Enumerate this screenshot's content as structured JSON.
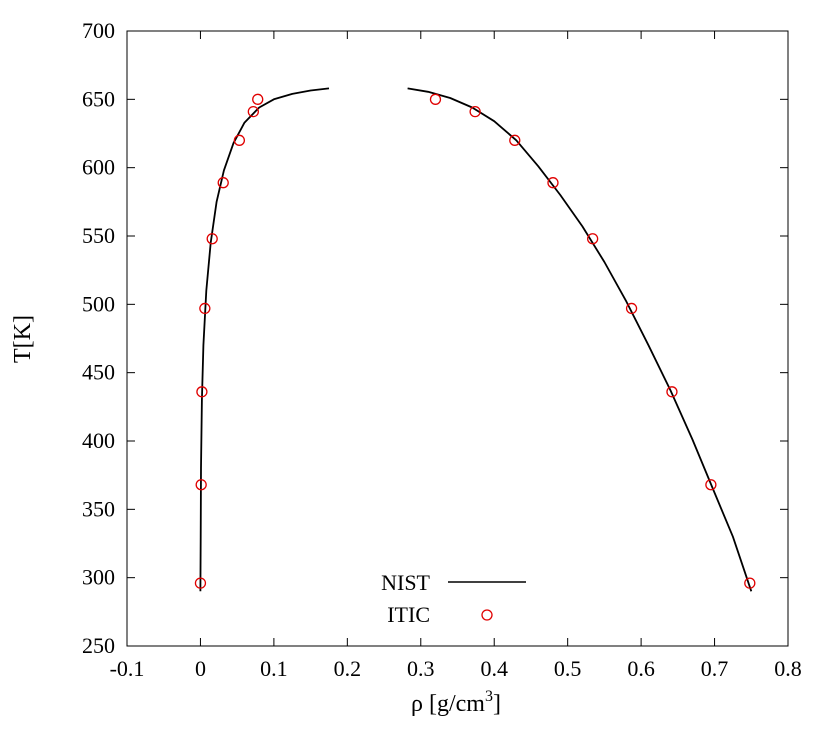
{
  "chart_data": {
    "type": "scatter",
    "xlabel": "ρ [g/cm",
    "xlabel_sup": "3",
    "xlabel_tail": "]",
    "ylabel": "T[K]",
    "xlim": [
      -0.1,
      0.8
    ],
    "ylim": [
      250,
      700
    ],
    "x_ticks": [
      -0.1,
      0,
      0.1,
      0.2,
      0.3,
      0.4,
      0.5,
      0.6,
      0.7,
      0.8
    ],
    "x_tick_labels": [
      "-0.1",
      "0",
      "0.1",
      "0.2",
      "0.3",
      "0.4",
      "0.5",
      "0.6",
      "0.7",
      "0.8"
    ],
    "y_ticks": [
      250,
      300,
      350,
      400,
      450,
      500,
      550,
      600,
      650,
      700
    ],
    "y_tick_labels": [
      "250",
      "300",
      "350",
      "400",
      "450",
      "500",
      "550",
      "600",
      "650",
      "700"
    ],
    "grid": false,
    "legend_position": "bottom-center",
    "colors": {
      "nist": "#000000",
      "itic": "#e00000"
    },
    "series": [
      {
        "name": "NIST",
        "style": "line",
        "segments": [
          [
            [
              0.0,
              290
            ],
            [
              0.0003,
              330
            ],
            [
              0.0008,
              380
            ],
            [
              0.002,
              430
            ],
            [
              0.004,
              470
            ],
            [
              0.008,
              510
            ],
            [
              0.014,
              545
            ],
            [
              0.022,
              575
            ],
            [
              0.032,
              598
            ],
            [
              0.045,
              618
            ],
            [
              0.06,
              633
            ],
            [
              0.08,
              644
            ],
            [
              0.1,
              650
            ],
            [
              0.125,
              654
            ],
            [
              0.15,
              656.5
            ],
            [
              0.175,
              658
            ]
          ],
          [
            [
              0.282,
              658
            ],
            [
              0.31,
              655.5
            ],
            [
              0.34,
              651
            ],
            [
              0.37,
              644
            ],
            [
              0.4,
              634
            ],
            [
              0.43,
              620
            ],
            [
              0.46,
              601
            ],
            [
              0.49,
              580
            ],
            [
              0.52,
              557
            ],
            [
              0.55,
              531
            ],
            [
              0.58,
              502
            ],
            [
              0.61,
              470
            ],
            [
              0.64,
              437
            ],
            [
              0.67,
              401
            ],
            [
              0.7,
              362
            ],
            [
              0.725,
              330
            ],
            [
              0.75,
              290
            ]
          ]
        ]
      },
      {
        "name": "ITIC",
        "style": "markers",
        "points": [
          [
            0.0,
            296
          ],
          [
            0.001,
            368
          ],
          [
            0.002,
            436
          ],
          [
            0.006,
            497
          ],
          [
            0.016,
            548
          ],
          [
            0.031,
            589
          ],
          [
            0.053,
            620
          ],
          [
            0.072,
            641
          ],
          [
            0.078,
            650
          ],
          [
            0.32,
            650
          ],
          [
            0.374,
            641
          ],
          [
            0.428,
            620
          ],
          [
            0.48,
            589
          ],
          [
            0.534,
            548
          ],
          [
            0.587,
            497
          ],
          [
            0.642,
            436
          ],
          [
            0.695,
            368
          ],
          [
            0.748,
            296
          ]
        ]
      }
    ]
  }
}
